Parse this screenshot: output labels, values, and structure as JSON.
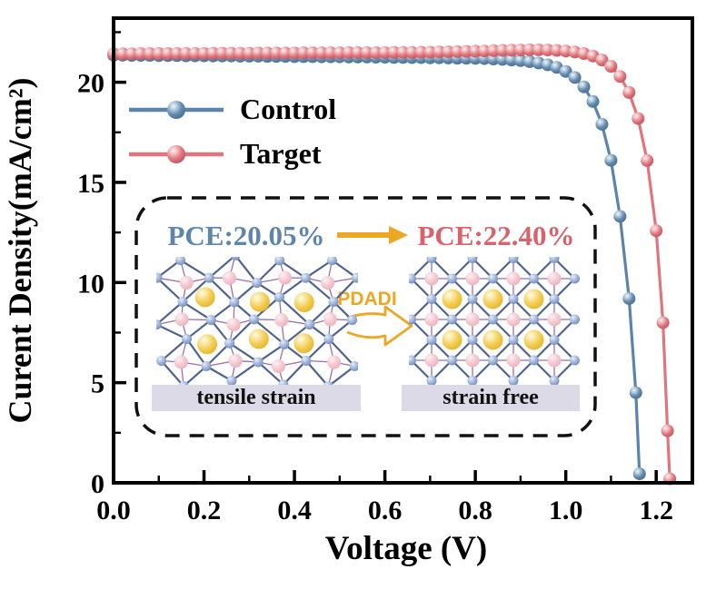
{
  "figure": {
    "background": "#ffffff"
  },
  "chart_data": {
    "type": "line",
    "title": "",
    "xlabel": "Voltage (V)",
    "ylabel": "Curent Density(mA/cm²)",
    "xlim": [
      0,
      1.28
    ],
    "ylim": [
      0,
      23.2
    ],
    "grid": false,
    "legend_position": "upper-left-inside",
    "x_tick_values": [
      0.0,
      0.2,
      0.4,
      0.6,
      0.8,
      1.0,
      1.2
    ],
    "x_tick_labels": [
      "0.0",
      "0.2",
      "0.4",
      "0.6",
      "0.8",
      "1.0",
      "1.2"
    ],
    "x_minor_ticks": [
      0.1,
      0.3,
      0.5,
      0.7,
      0.9,
      1.1
    ],
    "y_tick_values": [
      0,
      5,
      10,
      15,
      20
    ],
    "y_tick_labels": [
      "0",
      "5",
      "10",
      "15",
      "20"
    ],
    "y_minor_ticks": [
      2.5,
      7.5,
      12.5,
      17.5,
      22.5
    ],
    "series": [
      {
        "name": "Control",
        "color": "#5b84ad",
        "marker": "sphere",
        "points": [
          [
            0.0,
            21.35
          ],
          [
            0.02,
            21.35
          ],
          [
            0.04,
            21.34
          ],
          [
            0.06,
            21.34
          ],
          [
            0.08,
            21.34
          ],
          [
            0.1,
            21.33
          ],
          [
            0.12,
            21.33
          ],
          [
            0.14,
            21.33
          ],
          [
            0.16,
            21.32
          ],
          [
            0.18,
            21.32
          ],
          [
            0.2,
            21.32
          ],
          [
            0.22,
            21.31
          ],
          [
            0.24,
            21.31
          ],
          [
            0.26,
            21.31
          ],
          [
            0.28,
            21.3
          ],
          [
            0.3,
            21.3
          ],
          [
            0.32,
            21.3
          ],
          [
            0.34,
            21.29
          ],
          [
            0.36,
            21.29
          ],
          [
            0.38,
            21.29
          ],
          [
            0.4,
            21.28
          ],
          [
            0.42,
            21.28
          ],
          [
            0.44,
            21.28
          ],
          [
            0.46,
            21.27
          ],
          [
            0.48,
            21.27
          ],
          [
            0.5,
            21.27
          ],
          [
            0.52,
            21.26
          ],
          [
            0.54,
            21.26
          ],
          [
            0.56,
            21.26
          ],
          [
            0.58,
            21.25
          ],
          [
            0.6,
            21.25
          ],
          [
            0.62,
            21.24
          ],
          [
            0.64,
            21.24
          ],
          [
            0.66,
            21.23
          ],
          [
            0.68,
            21.23
          ],
          [
            0.7,
            21.22
          ],
          [
            0.72,
            21.22
          ],
          [
            0.74,
            21.21
          ],
          [
            0.76,
            21.2
          ],
          [
            0.78,
            21.2
          ],
          [
            0.8,
            21.19
          ],
          [
            0.82,
            21.18
          ],
          [
            0.84,
            21.16
          ],
          [
            0.86,
            21.14
          ],
          [
            0.88,
            21.11
          ],
          [
            0.9,
            21.08
          ],
          [
            0.92,
            21.03
          ],
          [
            0.94,
            20.96
          ],
          [
            0.96,
            20.87
          ],
          [
            0.98,
            20.74
          ],
          [
            1.0,
            20.54
          ],
          [
            1.02,
            20.24
          ],
          [
            1.04,
            19.77
          ],
          [
            1.06,
            19.04
          ],
          [
            1.08,
            17.9
          ],
          [
            1.1,
            16.1
          ],
          [
            1.12,
            13.3
          ],
          [
            1.14,
            9.2
          ],
          [
            1.155,
            4.5
          ],
          [
            1.163,
            0.45
          ]
        ]
      },
      {
        "name": "Target",
        "color": "#e0767d",
        "marker": "sphere",
        "points": [
          [
            0.0,
            21.42
          ],
          [
            0.02,
            21.42
          ],
          [
            0.04,
            21.42
          ],
          [
            0.06,
            21.43
          ],
          [
            0.08,
            21.43
          ],
          [
            0.1,
            21.43
          ],
          [
            0.12,
            21.43
          ],
          [
            0.14,
            21.44
          ],
          [
            0.16,
            21.44
          ],
          [
            0.18,
            21.44
          ],
          [
            0.2,
            21.44
          ],
          [
            0.22,
            21.45
          ],
          [
            0.24,
            21.45
          ],
          [
            0.26,
            21.45
          ],
          [
            0.28,
            21.45
          ],
          [
            0.3,
            21.45
          ],
          [
            0.32,
            21.46
          ],
          [
            0.34,
            21.46
          ],
          [
            0.36,
            21.46
          ],
          [
            0.38,
            21.46
          ],
          [
            0.4,
            21.46
          ],
          [
            0.42,
            21.47
          ],
          [
            0.44,
            21.47
          ],
          [
            0.46,
            21.47
          ],
          [
            0.48,
            21.47
          ],
          [
            0.5,
            21.47
          ],
          [
            0.52,
            21.48
          ],
          [
            0.54,
            21.48
          ],
          [
            0.56,
            21.48
          ],
          [
            0.58,
            21.48
          ],
          [
            0.6,
            21.48
          ],
          [
            0.62,
            21.49
          ],
          [
            0.64,
            21.49
          ],
          [
            0.66,
            21.49
          ],
          [
            0.68,
            21.5
          ],
          [
            0.7,
            21.5
          ],
          [
            0.72,
            21.51
          ],
          [
            0.74,
            21.52
          ],
          [
            0.76,
            21.53
          ],
          [
            0.78,
            21.54
          ],
          [
            0.8,
            21.55
          ],
          [
            0.82,
            21.56
          ],
          [
            0.84,
            21.58
          ],
          [
            0.86,
            21.59
          ],
          [
            0.88,
            21.6
          ],
          [
            0.9,
            21.61
          ],
          [
            0.92,
            21.62
          ],
          [
            0.94,
            21.62
          ],
          [
            0.96,
            21.61
          ],
          [
            0.98,
            21.59
          ],
          [
            1.0,
            21.56
          ],
          [
            1.02,
            21.51
          ],
          [
            1.04,
            21.43
          ],
          [
            1.06,
            21.31
          ],
          [
            1.08,
            21.11
          ],
          [
            1.1,
            20.79
          ],
          [
            1.12,
            20.29
          ],
          [
            1.14,
            19.49
          ],
          [
            1.16,
            18.19
          ],
          [
            1.18,
            16.09
          ],
          [
            1.2,
            12.59
          ],
          [
            1.215,
            8.0
          ],
          [
            1.225,
            2.6
          ],
          [
            1.23,
            0.2
          ]
        ]
      }
    ]
  },
  "legend": {
    "items": [
      {
        "label": "Control",
        "color": "#5b84ad",
        "gradient": "grad-control"
      },
      {
        "label": "Target",
        "color": "#e0767d",
        "gradient": "grad-target"
      }
    ]
  },
  "inset": {
    "pce_before": "PCE:20.05%",
    "pce_before_color": "#5e86ac",
    "pce_after": "PCE:22.40%",
    "pce_after_color": "#d9626b",
    "process_label": "PDADI",
    "arrow_color": "#eda723",
    "caption_left": "tensile strain",
    "caption_right": "strain free",
    "caption_bg": "#dbdae6",
    "border_color": "#111111",
    "lattice": {
      "cols": 4,
      "rows": 3,
      "edge_color": "#4f6390",
      "cross_color": "#9b6fae",
      "corner_atom_color": "#6f8cc0",
      "center_atom_color": "#efb0bc",
      "cation_color": "#f2cd52"
    }
  },
  "sphere_colors": {
    "control": [
      "#eef5fa",
      "#b7cede",
      "#6389ae",
      "#49708f"
    ],
    "target": [
      "#fdeeee",
      "#f2c3c6",
      "#e0767d",
      "#bf5560"
    ],
    "lattice_blue": [
      "#e6edf8",
      "#b3c4e2",
      "#6f8cc0"
    ],
    "lattice_pink": [
      "#fdf3f5",
      "#f7d4da",
      "#efb0bc"
    ],
    "lattice_yellow": [
      "#fffbe8",
      "#fae9a8",
      "#f2cd52",
      "#e6b52e"
    ]
  }
}
